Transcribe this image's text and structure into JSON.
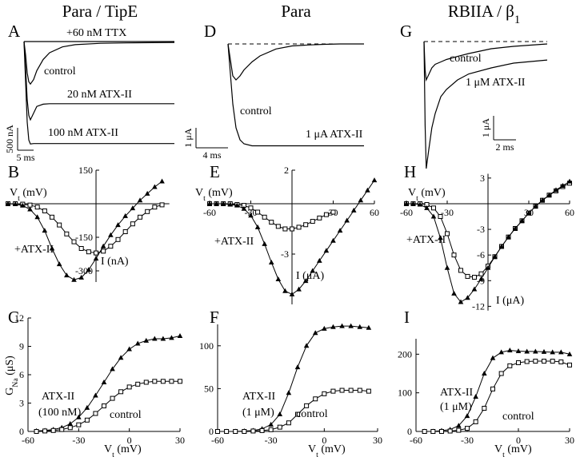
{
  "chart_data": [
    {
      "type": "trace",
      "panel": "A",
      "title": "Para / TipE",
      "color": "#000000",
      "baseline": false,
      "x": [
        0,
        0.5,
        1,
        1.5,
        2,
        3,
        4,
        6,
        8,
        12,
        16,
        24,
        32,
        40,
        47
      ],
      "series": [
        {
          "values": [
            0,
            0,
            0,
            0,
            0,
            0,
            0,
            0,
            0,
            0,
            0,
            0,
            0,
            0,
            0
          ]
        },
        {
          "values": [
            0,
            -300,
            -700,
            -900,
            -950,
            -850,
            -650,
            -400,
            -250,
            -120,
            -70,
            -40,
            -30,
            -25,
            -20
          ]
        },
        {
          "values": [
            0,
            -600,
            -1300,
            -1650,
            -1750,
            -1600,
            -1450,
            -1400,
            -1390,
            -1390,
            -1390,
            -1390,
            -1390,
            -1390,
            -1390
          ]
        },
        {
          "values": [
            0,
            -900,
            -1800,
            -2200,
            -2290,
            -2280,
            -2280,
            -2280,
            -2280,
            -2280,
            -2280,
            -2280,
            -2280,
            -2280,
            -2280
          ]
        }
      ],
      "annotations": [
        "+60 nM TTX",
        "control",
        "20 nM ATX-II",
        "100 nM ATX-II"
      ],
      "scalebar": {
        "y": 500,
        "y_label": "500 nA",
        "x": 5,
        "x_label": "5 ms"
      }
    },
    {
      "type": "iv",
      "panel": "B",
      "color": "#000000",
      "xlabel": [
        "V",
        "t",
        " (mV)"
      ],
      "ylabel": "I (nA)",
      "xlim": [
        -60,
        50
      ],
      "ylim": [
        -350,
        150
      ],
      "yticks": [
        150,
        -150,
        -300
      ],
      "x": [
        -60,
        -55,
        -50,
        -45,
        -40,
        -35,
        -30,
        -25,
        -20,
        -15,
        -10,
        -5,
        0,
        5,
        10,
        15,
        20,
        25,
        30,
        35,
        40,
        45
      ],
      "series": [
        {
          "marker": "square",
          "values": [
            0,
            0,
            -2,
            -6,
            -15,
            -32,
            -60,
            -95,
            -135,
            -170,
            -200,
            -215,
            -220,
            -212,
            -190,
            -160,
            -125,
            -90,
            -60,
            -35,
            -15,
            -5
          ]
        },
        {
          "marker": "triangle",
          "values": [
            0,
            -2,
            -8,
            -25,
            -60,
            -120,
            -200,
            -270,
            -320,
            -340,
            -330,
            -295,
            -245,
            -190,
            -140,
            -95,
            -55,
            -20,
            15,
            45,
            75,
            100
          ]
        }
      ],
      "annotations": [
        "+ATX-II"
      ]
    },
    {
      "type": "conductance",
      "panel": "C",
      "color": "#000000",
      "xlabel": [
        "V",
        "t",
        " (mV)"
      ],
      "ylabel": [
        "G",
        "Na",
        "  (μS)"
      ],
      "xlim": [
        -60,
        30
      ],
      "xticks": [
        -60,
        -30,
        0,
        30
      ],
      "ylim": [
        0,
        12
      ],
      "yticks": [
        0,
        3,
        6,
        9,
        12
      ],
      "x": [
        -55,
        -50,
        -45,
        -40,
        -35,
        -30,
        -25,
        -20,
        -15,
        -10,
        -5,
        0,
        5,
        10,
        15,
        20,
        25,
        30
      ],
      "series": [
        {
          "marker": "triangle",
          "values": [
            0.05,
            0.1,
            0.2,
            0.4,
            0.8,
            1.5,
            2.5,
            3.8,
            5.2,
            6.6,
            7.8,
            8.7,
            9.3,
            9.6,
            9.8,
            9.8,
            9.9,
            10.1
          ]
        },
        {
          "marker": "square",
          "values": [
            0,
            0.05,
            0.1,
            0.2,
            0.4,
            0.7,
            1.2,
            1.9,
            2.7,
            3.5,
            4.2,
            4.7,
            5,
            5.2,
            5.3,
            5.3,
            5.3,
            5.3
          ]
        }
      ],
      "annotations": [
        "ATX-II",
        "(100 nM)",
        "control"
      ]
    },
    {
      "type": "trace",
      "panel": "D",
      "title": "Para",
      "color": "#000000",
      "baseline": true,
      "x": [
        0,
        0.3,
        0.6,
        1,
        1.5,
        2,
        3,
        4,
        6,
        8,
        10,
        12,
        14,
        16,
        17
      ],
      "series": [
        {
          "values": [
            0,
            -0.8,
            -1.6,
            -1.8,
            -1.6,
            -1.3,
            -0.9,
            -0.6,
            -0.25,
            -0.1,
            -0.05,
            -0.02,
            0,
            0,
            0
          ]
        },
        {
          "values": [
            0,
            -1.5,
            -3,
            -4.2,
            -4.8,
            -5,
            -5.1,
            -5.1,
            -5.1,
            -5.1,
            -5.1,
            -5.1,
            -5.1,
            -5.1,
            -5.1
          ]
        }
      ],
      "annotations": [
        "control",
        "1 μA ATX-II"
      ],
      "scalebar": {
        "y": 1,
        "y_label": "1 μA",
        "x": 4,
        "x_label": "4 ms"
      }
    },
    {
      "type": "iv",
      "panel": "E",
      "color": "#000000",
      "xlabel": [
        "V",
        "t",
        " (mV)"
      ],
      "ylabel": "I (μA)",
      "xlim": [
        -60,
        60
      ],
      "xticks": [
        -60,
        -30,
        30,
        60
      ],
      "ylim": [
        -6,
        2
      ],
      "yticks": [
        2,
        -3
      ],
      "x": [
        -60,
        -55,
        -50,
        -45,
        -40,
        -35,
        -30,
        -25,
        -20,
        -15,
        -10,
        -5,
        0,
        5,
        10,
        15,
        20,
        25,
        30,
        35,
        40,
        45,
        50,
        55,
        60
      ],
      "series": [
        {
          "marker": "square",
          "values": [
            0,
            0,
            0,
            0,
            -0.05,
            -0.1,
            -0.25,
            -0.5,
            -0.8,
            -1.1,
            -1.35,
            -1.5,
            -1.5,
            -1.4,
            -1.25,
            -1.05,
            -0.85,
            -0.65,
            -0.5,
            null,
            null,
            null,
            null,
            null,
            null
          ]
        },
        {
          "marker": "triangle",
          "values": [
            0,
            0,
            0,
            -0.05,
            -0.1,
            -0.3,
            -0.7,
            -1.4,
            -2.4,
            -3.5,
            -4.5,
            -5.2,
            -5.4,
            -5.1,
            -4.6,
            -4,
            -3.4,
            -2.8,
            -2.2,
            -1.6,
            -1,
            -0.4,
            0.2,
            0.8,
            1.4
          ]
        }
      ],
      "annotations": [
        "+ATX-II"
      ]
    },
    {
      "type": "conductance",
      "panel": "F",
      "color": "#000000",
      "xlabel": [
        "V",
        "t",
        " (mV)"
      ],
      "xlim": [
        -60,
        30
      ],
      "xticks": [
        -60,
        -30,
        0,
        30
      ],
      "ylim": [
        0,
        125
      ],
      "yticks": [
        0,
        50,
        100
      ],
      "x": [
        -60,
        -55,
        -50,
        -45,
        -40,
        -35,
        -30,
        -25,
        -20,
        -15,
        -10,
        -5,
        0,
        5,
        10,
        15,
        20,
        25
      ],
      "series": [
        {
          "marker": "triangle",
          "values": [
            0,
            0,
            0,
            0.5,
            1,
            3,
            8,
            20,
            45,
            75,
            100,
            115,
            120,
            122,
            123,
            123,
            122,
            121
          ]
        },
        {
          "marker": "square",
          "values": [
            0,
            0,
            0,
            0,
            0.5,
            1,
            2,
            5,
            10,
            20,
            30,
            38,
            44,
            47,
            48,
            48,
            48,
            47
          ]
        }
      ],
      "annotations": [
        "ATX-II",
        "(1 μM)",
        "control"
      ]
    },
    {
      "type": "trace",
      "panel": "G",
      "title": [
        "RBIIA / β",
        "1"
      ],
      "color": "#000000",
      "baseline": true,
      "x": [
        0,
        0.1,
        0.2,
        0.4,
        0.7,
        1,
        1.5,
        2,
        3,
        4,
        6,
        8,
        11
      ],
      "series": [
        {
          "values": [
            0,
            -1.2,
            -1.6,
            -1.4,
            -1.1,
            -0.95,
            -0.85,
            -0.75,
            -0.62,
            -0.5,
            -0.3,
            -0.2,
            -0.1
          ]
        },
        {
          "values": [
            0,
            -3.5,
            -5.3,
            -4.6,
            -3.6,
            -3,
            -2.3,
            -2,
            -1.6,
            -1.35,
            -1.1,
            -0.9,
            -0.77
          ]
        }
      ],
      "annotations": [
        "control",
        "1 μM ATX-II"
      ],
      "scalebar": {
        "y": 1,
        "y_label": "1 μA",
        "x": 2,
        "x_label": "2 ms"
      }
    },
    {
      "type": "iv",
      "panel": "H",
      "color": "#000000",
      "xlabel": [
        "V",
        "t",
        " (mV)"
      ],
      "ylabel": "I (μA)",
      "xlim": [
        -60,
        60
      ],
      "xticks": [
        -60,
        -30,
        30,
        60
      ],
      "ylim": [
        -12.5,
        3.5
      ],
      "yticks": [
        3,
        -3,
        -6,
        -9,
        -12
      ],
      "x": [
        -60,
        -55,
        -50,
        -45,
        -40,
        -35,
        -30,
        -25,
        -20,
        -15,
        -10,
        -5,
        0,
        5,
        10,
        15,
        20,
        25,
        30,
        35,
        40,
        45,
        50,
        55,
        60
      ],
      "series": [
        {
          "marker": "square",
          "values": [
            0,
            0,
            0,
            -0.1,
            -0.5,
            -1.5,
            -3.5,
            -6,
            -7.8,
            -8.5,
            -8.6,
            -8.2,
            -7.3,
            -6.2,
            -5,
            -3.9,
            -2.9,
            -2,
            -1.1,
            -0.3,
            0.4,
            1,
            1.5,
            2,
            2.4
          ]
        },
        {
          "marker": "triangle",
          "values": [
            0,
            0,
            -0.1,
            -0.5,
            -1.5,
            -4,
            -7.5,
            -10.5,
            -11.5,
            -11,
            -10,
            -8.8,
            -7.5,
            -6.2,
            -5,
            -3.9,
            -2.9,
            -2,
            -1.1,
            -0.3,
            0.4,
            1,
            1.6,
            2.1,
            2.6
          ]
        }
      ],
      "annotations": [
        "+ATX-II"
      ]
    },
    {
      "type": "conductance",
      "panel": "I",
      "color": "#000000",
      "xlabel": [
        "V",
        "t",
        " (mV)"
      ],
      "xlim": [
        -60,
        30
      ],
      "xticks": [
        -60,
        -30,
        0,
        30
      ],
      "ylim": [
        0,
        240
      ],
      "yticks": [
        0,
        100,
        200
      ],
      "x": [
        -55,
        -50,
        -45,
        -40,
        -35,
        -30,
        -25,
        -20,
        -15,
        -10,
        -5,
        0,
        5,
        10,
        15,
        20,
        25,
        30
      ],
      "series": [
        {
          "marker": "triangle",
          "values": [
            0,
            0,
            2,
            5,
            15,
            40,
            90,
            150,
            190,
            205,
            210,
            208,
            207,
            207,
            206,
            205,
            205,
            200
          ]
        },
        {
          "marker": "square",
          "values": [
            0,
            0,
            0,
            1,
            3,
            8,
            25,
            60,
            110,
            150,
            170,
            178,
            181,
            182,
            182,
            182,
            180,
            172
          ]
        }
      ],
      "annotations": [
        "ATX-II",
        "(1 μM)",
        "control"
      ]
    }
  ]
}
